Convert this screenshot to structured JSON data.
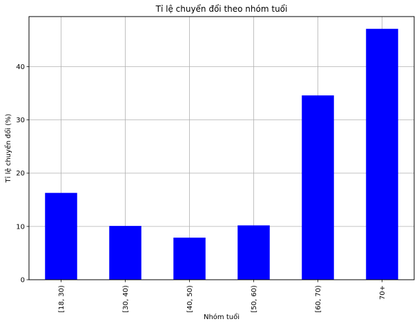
{
  "chart_data": {
    "type": "bar",
    "title": "Tỉ lệ chuyển đổi theo nhóm tuổi",
    "xlabel": "Nhóm tuổi",
    "ylabel": "Tỉ lệ chuyển đổi (%)",
    "categories": [
      "[18, 30)",
      "[30, 40)",
      "[40, 50)",
      "[50, 60)",
      "[60, 70)",
      "70+"
    ],
    "values": [
      16.3,
      10.1,
      7.9,
      10.2,
      34.6,
      47.1
    ],
    "ylim": [
      0,
      49.4
    ],
    "yticks": [
      0,
      10,
      20,
      30,
      40
    ],
    "ytick_labels": [
      "0",
      "10",
      "20",
      "30",
      "40"
    ],
    "grid": true,
    "bar_color": "#0000ff",
    "grid_color": "#b0b0b0"
  }
}
